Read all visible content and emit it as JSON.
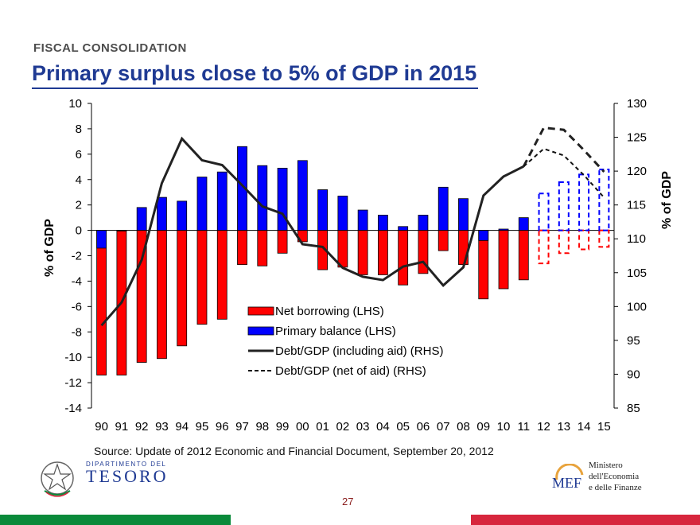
{
  "header": {
    "section": "FISCAL CONSOLIDATION",
    "title": "Primary surplus close to 5% of GDP in 2015"
  },
  "footer": {
    "source": "Source: Update of 2012 Economic and Financial Document, September 20, 2012",
    "page_number": "27",
    "left_logo": {
      "small": "Dipartimento del",
      "big": "TESORO"
    },
    "right_logo": {
      "mark": "MEF",
      "lines": [
        "Ministero",
        "dell'Economia",
        "e delle Finanze"
      ]
    },
    "stripe_colors": [
      "#0a8a3a",
      "#ffffff",
      "#d7263d"
    ]
  },
  "colors": {
    "net_borrowing": "#ff0000",
    "primary_balance": "#0000ff",
    "title": "#1f3a93"
  },
  "chart_data": {
    "type": "bar",
    "categories": [
      "90",
      "91",
      "92",
      "93",
      "94",
      "95",
      "96",
      "97",
      "98",
      "99",
      "00",
      "01",
      "02",
      "03",
      "04",
      "05",
      "06",
      "07",
      "08",
      "09",
      "10",
      "11",
      "12",
      "13",
      "14",
      "15"
    ],
    "forecast_from": "12",
    "ylabel": "% of GDP",
    "ylabel_right": "% of GDP",
    "ylim": [
      -14,
      10
    ],
    "yticks": [
      10,
      8,
      6,
      4,
      2,
      0,
      -2,
      -4,
      -6,
      -8,
      -10,
      -12,
      -14
    ],
    "ylim_right": [
      85,
      130
    ],
    "yticks_right": [
      130,
      125,
      120,
      115,
      110,
      105,
      100,
      95,
      90,
      85
    ],
    "legend_position": "center",
    "series": [
      {
        "name": "Net borrowing (LHS)",
        "kind": "bar",
        "axis": "left",
        "values": [
          -11.4,
          -11.4,
          -10.4,
          -10.1,
          -9.1,
          -7.4,
          -7.0,
          -2.7,
          -2.8,
          -1.8,
          -0.9,
          -3.1,
          -2.9,
          -3.5,
          -3.5,
          -4.3,
          -3.4,
          -1.6,
          -2.7,
          -5.4,
          -4.6,
          -3.9,
          -2.6,
          -1.8,
          -1.5,
          -1.3
        ]
      },
      {
        "name": "Primary balance (LHS)",
        "kind": "bar",
        "axis": "left",
        "values": [
          -1.4,
          0.0,
          1.8,
          2.6,
          2.3,
          4.2,
          4.6,
          6.6,
          5.1,
          4.9,
          5.5,
          3.2,
          2.7,
          1.6,
          1.2,
          0.3,
          1.2,
          3.4,
          2.5,
          -0.8,
          0.1,
          1.0,
          2.9,
          3.8,
          4.4,
          4.8
        ]
      },
      {
        "name": "Debt/GDP (including aid) (RHS)",
        "kind": "line",
        "axis": "right",
        "values": [
          97.2,
          100.6,
          106.9,
          118.2,
          124.8,
          121.6,
          120.9,
          117.9,
          114.8,
          113.7,
          109.2,
          108.8,
          105.7,
          104.4,
          103.9,
          105.9,
          106.6,
          103.1,
          105.8,
          116.4,
          119.2,
          120.7,
          126.4,
          126.1,
          123.1,
          119.9
        ]
      },
      {
        "name": "Debt/GDP (net of aid) (RHS)",
        "kind": "line",
        "axis": "right",
        "values": [
          null,
          null,
          null,
          null,
          null,
          null,
          null,
          null,
          null,
          null,
          null,
          null,
          null,
          null,
          null,
          null,
          null,
          null,
          null,
          null,
          null,
          null,
          123.3,
          122.3,
          119.4,
          116.1
        ]
      }
    ]
  }
}
